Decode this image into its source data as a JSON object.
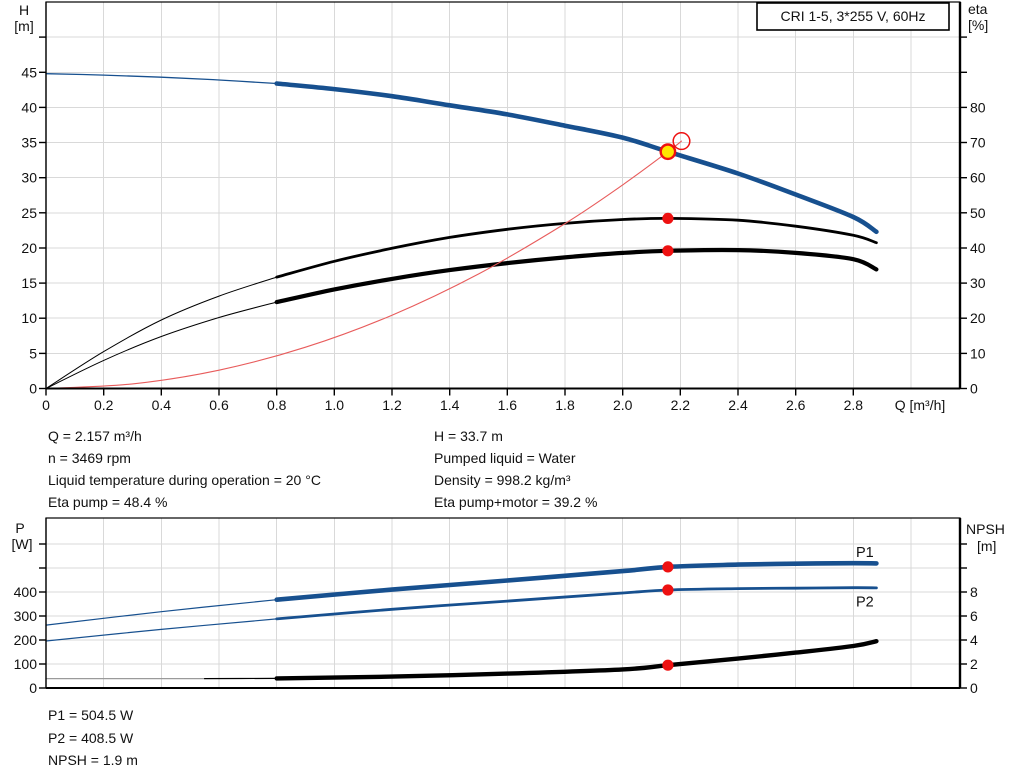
{
  "colors": {
    "curve_blue": "#17508F",
    "curve_black": "#000000",
    "system_red": "#e85c5c",
    "marker_red": "#ee1111",
    "marker_yellow": "#ffe600",
    "grey_segment": "#9a9a9a",
    "grid": "#d9d9d9",
    "frame": "#000000",
    "text": "#111111"
  },
  "info": {
    "left": [
      "Q = 2.157 m³/h",
      "n = 3469 rpm",
      "Liquid temperature during operation = 20 °C",
      "Eta pump = 48.4 %"
    ],
    "right": [
      "H = 33.7 m",
      "Pumped liquid = Water",
      "Density = 998.2 kg/m³",
      "Eta pump+motor = 39.2 %"
    ],
    "bottom": [
      "P1 = 504.5 W",
      "P2 = 408.5 W",
      "NPSH = 1.9 m"
    ]
  },
  "chart_data": [
    {
      "type": "line",
      "name": "head-efficiency-chart",
      "title": "CRI 1-5, 3*255 V, 60Hz",
      "x": {
        "label": "Q [m³/h]",
        "min": 0,
        "max": 3.17,
        "grid_step": 0.2,
        "tick_step": 0.2,
        "tick_max": 2.8
      },
      "y_left": {
        "title": [
          "H",
          "[m]"
        ],
        "min": 0,
        "max": 55,
        "tick_step": 5,
        "label_max": 45
      },
      "y_right": {
        "title": [
          "eta",
          "[%]"
        ],
        "min": 0,
        "max": 110,
        "tick_step": 10,
        "label_max": 80
      },
      "series": [
        {
          "name": "H curve",
          "axis": "left",
          "color": "#17508F",
          "width": 4.6,
          "width_thin": 1.3,
          "thin_until": 0.8,
          "points": [
            [
              0,
              44.8
            ],
            [
              0.2,
              44.6
            ],
            [
              0.4,
              44.3
            ],
            [
              0.6,
              43.9
            ],
            [
              0.8,
              43.4
            ],
            [
              1.0,
              42.6
            ],
            [
              1.2,
              41.6
            ],
            [
              1.4,
              40.3
            ],
            [
              1.6,
              39.0
            ],
            [
              1.8,
              37.4
            ],
            [
              2.0,
              35.7
            ],
            [
              2.157,
              33.7
            ],
            [
              2.4,
              30.6
            ],
            [
              2.6,
              27.6
            ],
            [
              2.8,
              24.4
            ],
            [
              2.88,
              22.3
            ]
          ]
        },
        {
          "name": "eta pump",
          "axis": "right",
          "color": "#000000",
          "width": 2.8,
          "width_thin": 1.0,
          "thin_until": 0.8,
          "points": [
            [
              0,
              0
            ],
            [
              0.2,
              10.5
            ],
            [
              0.4,
              19.5
            ],
            [
              0.6,
              26.3
            ],
            [
              0.8,
              31.7
            ],
            [
              1.0,
              36.2
            ],
            [
              1.2,
              39.9
            ],
            [
              1.4,
              43.0
            ],
            [
              1.6,
              45.3
            ],
            [
              1.8,
              47.0
            ],
            [
              2.0,
              48.1
            ],
            [
              2.157,
              48.4
            ],
            [
              2.4,
              47.9
            ],
            [
              2.6,
              46.2
            ],
            [
              2.8,
              43.6
            ],
            [
              2.88,
              41.5
            ]
          ]
        },
        {
          "name": "eta pump motor",
          "axis": "right",
          "color": "#000000",
          "width": 4.2,
          "width_thin": 1.0,
          "thin_until": 0.8,
          "points": [
            [
              0,
              0
            ],
            [
              0.2,
              8.0
            ],
            [
              0.4,
              14.8
            ],
            [
              0.6,
              20.2
            ],
            [
              0.8,
              24.6
            ],
            [
              1.0,
              28.2
            ],
            [
              1.2,
              31.2
            ],
            [
              1.4,
              33.7
            ],
            [
              1.6,
              35.7
            ],
            [
              1.8,
              37.3
            ],
            [
              2.0,
              38.6
            ],
            [
              2.157,
              39.2
            ],
            [
              2.4,
              39.4
            ],
            [
              2.6,
              38.6
            ],
            [
              2.8,
              36.8
            ],
            [
              2.88,
              33.9
            ]
          ]
        },
        {
          "name": "system curve",
          "axis": "left",
          "color": "#e85c5c",
          "width": 1.1,
          "points": [
            [
              0,
              0
            ],
            [
              0.3,
              0.65
            ],
            [
              0.6,
              2.61
            ],
            [
              0.9,
              5.87
            ],
            [
              1.2,
              10.43
            ],
            [
              1.5,
              16.3
            ],
            [
              1.8,
              23.47
            ],
            [
              2.0,
              28.97
            ],
            [
              2.157,
              33.7
            ],
            [
              2.204,
              35.2
            ]
          ]
        }
      ],
      "markers": [
        {
          "style": "yellow",
          "x": 2.157,
          "value": 33.7,
          "axis": "left",
          "name": "duty-point"
        },
        {
          "style": "open",
          "x": 2.204,
          "value": 35.2,
          "axis": "left",
          "name": "system-curve-intersection-point"
        },
        {
          "style": "dot",
          "x": 2.157,
          "value": 48.4,
          "axis": "right",
          "name": "eta-pump-operating-point"
        },
        {
          "style": "dot",
          "x": 2.157,
          "value": 39.2,
          "axis": "right",
          "name": "eta-pump-motor-operating-point"
        }
      ],
      "curve_labels": []
    },
    {
      "type": "line",
      "name": "power-npsh-chart",
      "title": null,
      "x": {
        "label": null,
        "min": 0,
        "max": 3.17,
        "grid_step": 0.2,
        "tick_step": 0.2,
        "tick_max": null
      },
      "y_left": {
        "title": [
          "P",
          "[W]"
        ],
        "min": 0,
        "max": 708.3,
        "tick_step": 100,
        "label_max": 400
      },
      "y_right": {
        "title": [
          "NPSH",
          "[m]"
        ],
        "min": 0,
        "max": 14.17,
        "tick_step": 2,
        "label_max": 8
      },
      "series": [
        {
          "name": "P1 curve",
          "axis": "left",
          "color": "#17508F",
          "width": 4.6,
          "width_thin": 1.2,
          "thin_until": 0.8,
          "points": [
            [
              0,
              262
            ],
            [
              0.4,
              318
            ],
            [
              0.8,
              368
            ],
            [
              1.2,
              410
            ],
            [
              1.6,
              448
            ],
            [
              2.0,
              487
            ],
            [
              2.157,
              504.5
            ],
            [
              2.4,
              514
            ],
            [
              2.6,
              518
            ],
            [
              2.8,
              520
            ],
            [
              2.88,
              519
            ]
          ]
        },
        {
          "name": "P2 curve",
          "axis": "left",
          "color": "#17508F",
          "width": 2.8,
          "width_thin": 1.2,
          "thin_until": 0.8,
          "points": [
            [
              0,
              196
            ],
            [
              0.4,
              244
            ],
            [
              0.8,
              288
            ],
            [
              1.2,
              328
            ],
            [
              1.6,
              362
            ],
            [
              2.0,
              396
            ],
            [
              2.157,
              408.5
            ],
            [
              2.4,
              414
            ],
            [
              2.6,
              416
            ],
            [
              2.8,
              418
            ],
            [
              2.88,
              417
            ]
          ]
        },
        {
          "name": "NPSH curve",
          "axis": "right",
          "color": "#000000",
          "width": 4.4,
          "width_thin": 1.2,
          "thin_until": 0.8,
          "grey_until": 0.55,
          "grey_color": "#9a9a9a",
          "points": [
            [
              0,
              0.78
            ],
            [
              0.55,
              0.78
            ],
            [
              0.8,
              0.8
            ],
            [
              1.2,
              0.95
            ],
            [
              1.6,
              1.2
            ],
            [
              2.0,
              1.55
            ],
            [
              2.157,
              1.9
            ],
            [
              2.4,
              2.45
            ],
            [
              2.6,
              2.95
            ],
            [
              2.8,
              3.5
            ],
            [
              2.88,
              3.9
            ]
          ]
        }
      ],
      "markers": [
        {
          "style": "dot",
          "x": 2.157,
          "value": 504.5,
          "axis": "left",
          "name": "p1-operating-point"
        },
        {
          "style": "dot",
          "x": 2.157,
          "value": 408.5,
          "axis": "left",
          "name": "p2-operating-point"
        },
        {
          "style": "dot",
          "x": 2.157,
          "value": 1.9,
          "axis": "right",
          "name": "npsh-operating-point"
        }
      ],
      "curve_labels": [
        {
          "text": "P1",
          "x": 2.84,
          "value": 567,
          "axis": "left"
        },
        {
          "text": "P2",
          "x": 2.84,
          "value": 360,
          "axis": "left"
        }
      ]
    }
  ]
}
